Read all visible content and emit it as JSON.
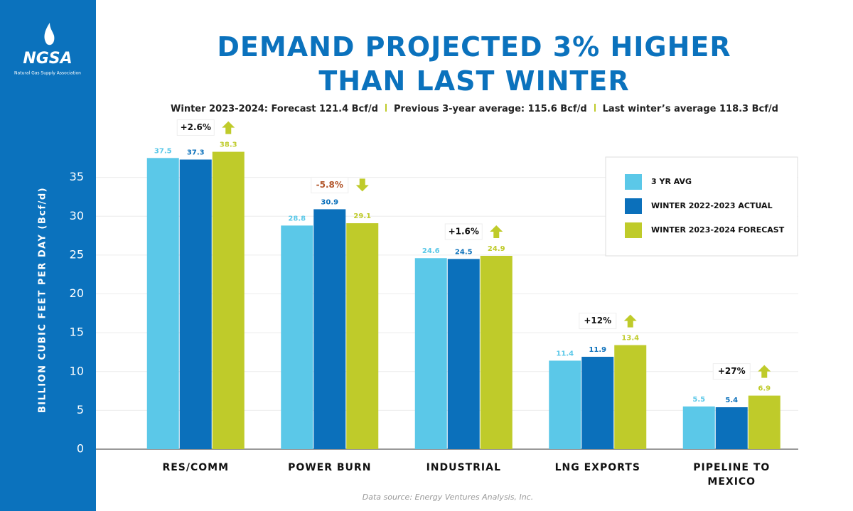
{
  "logo": {
    "name": "NGSA",
    "tagline": "Natural Gas Supply Association"
  },
  "chart_data": {
    "type": "bar",
    "title": "DEMAND PROJECTED 3% HIGHER THAN LAST WINTER",
    "subtitle": [
      "Winter 2023-2024: Forecast 121.4 Bcf/d",
      "Previous 3-year average: 115.6 Bcf/d",
      "Last winter’s average 118.3 Bcf/d"
    ],
    "y_label": "BILLION CUBIC FEET PER DAY (Bcf/d)",
    "categories": [
      "RES/COMM",
      "POWER BURN",
      "INDUSTRIAL",
      "LNG EXPORTS",
      "PIPELINE TO MEXICO"
    ],
    "series": [
      {
        "name": "3 YR AVG",
        "color": "#5bc8e8",
        "values": [
          37.5,
          28.8,
          24.6,
          11.4,
          5.5
        ]
      },
      {
        "name": "WINTER 2022-2023 ACTUAL",
        "color": "#0b70bb",
        "values": [
          37.3,
          30.9,
          24.5,
          11.9,
          5.4
        ]
      },
      {
        "name": "WINTER 2023-2024 FORECAST",
        "color": "#bfcb2a",
        "values": [
          38.3,
          29.1,
          24.9,
          13.4,
          6.9
        ]
      }
    ],
    "annotations": [
      {
        "text": "+2.6%",
        "direction": "up",
        "color": "#111111"
      },
      {
        "text": "-5.8%",
        "direction": "down",
        "color": "#b2562b"
      },
      {
        "text": "+1.6%",
        "direction": "up",
        "color": "#111111"
      },
      {
        "text": "+12%",
        "direction": "up",
        "color": "#111111"
      },
      {
        "text": "+27%",
        "direction": "up",
        "color": "#111111"
      }
    ],
    "ylim": [
      0,
      40
    ],
    "yticks": [
      0,
      5,
      10,
      15,
      20,
      25,
      30,
      35
    ],
    "grid": true,
    "legend": "upper right",
    "source": "Data source: Energy Ventures Analysis, Inc."
  }
}
